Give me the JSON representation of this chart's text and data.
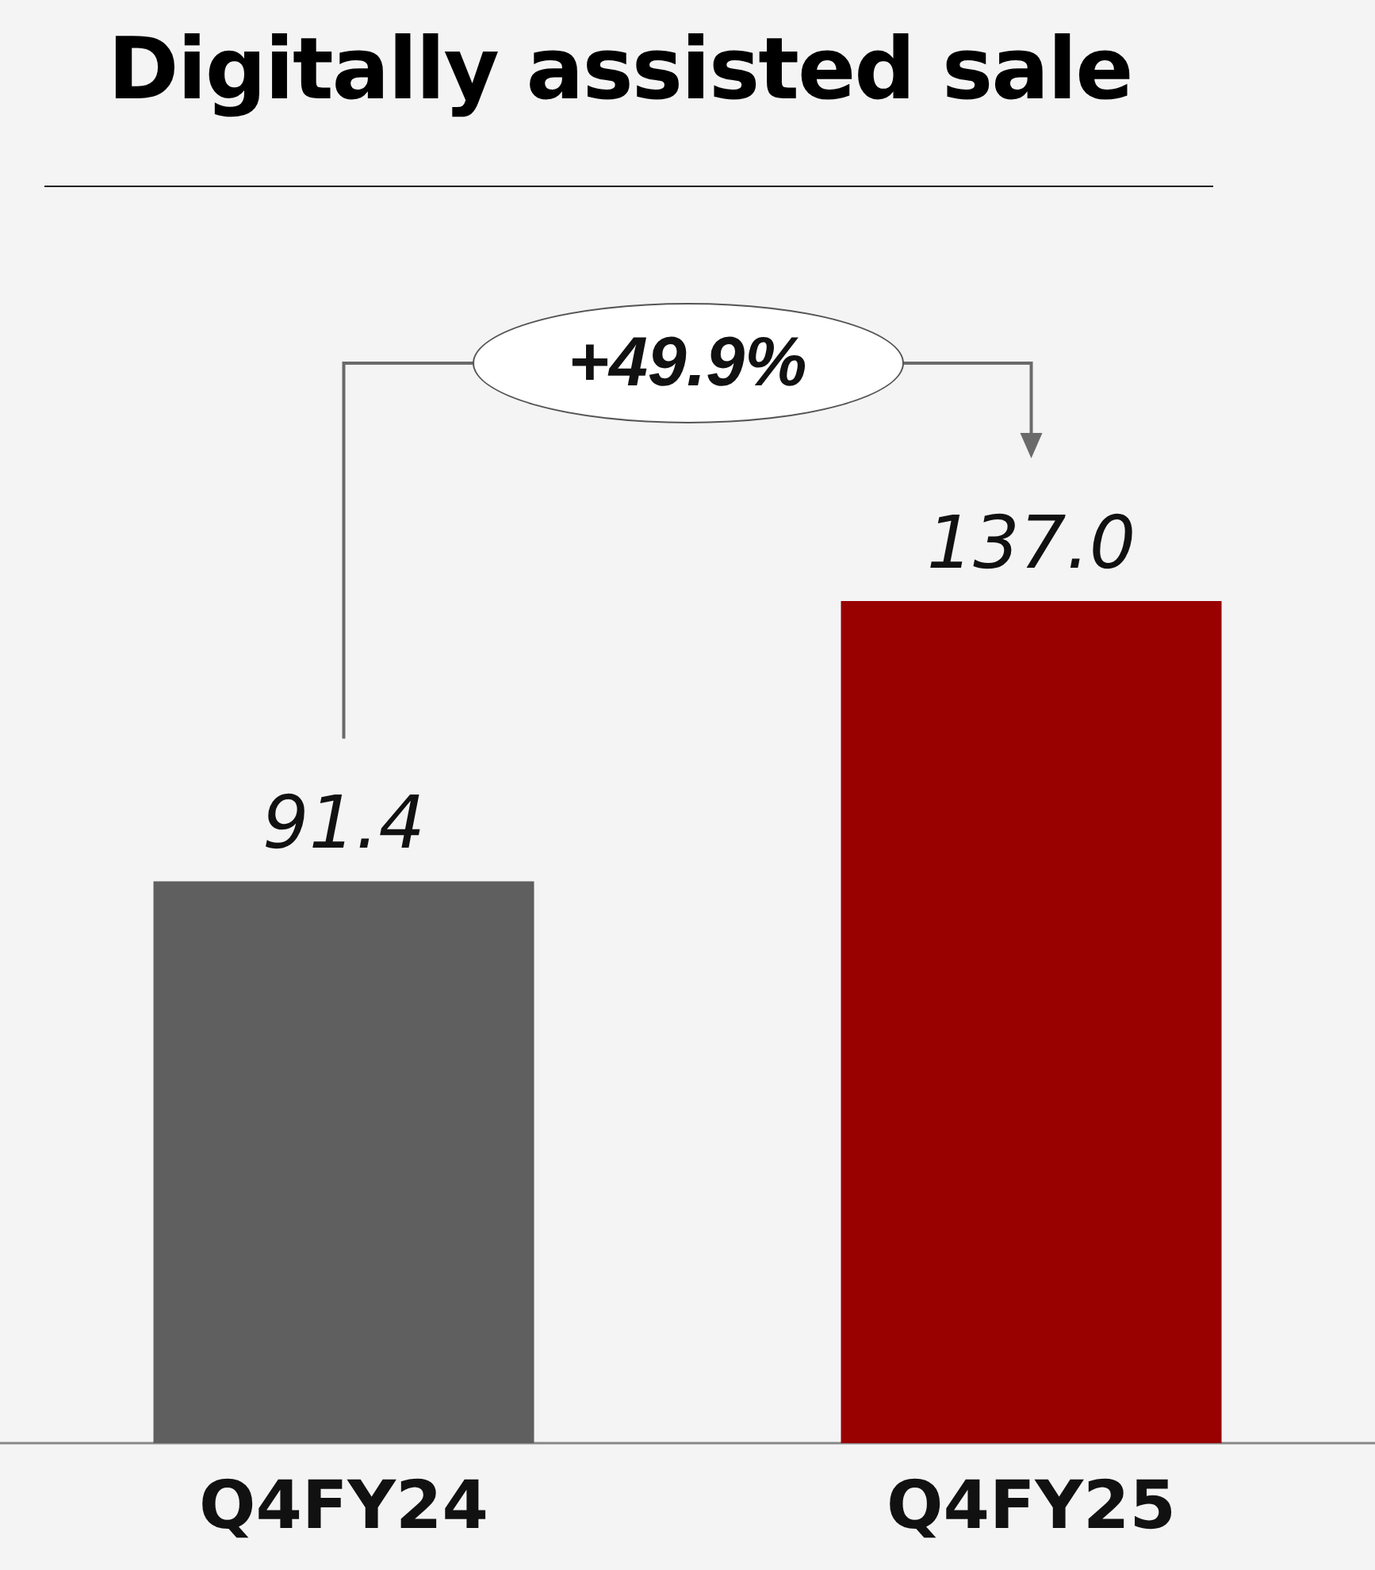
{
  "chart_data": {
    "type": "bar",
    "title": "Digitally assisted sale",
    "categories": [
      "Q4FY24",
      "Q4FY25"
    ],
    "values": [
      91.4,
      137.0
    ],
    "colors": [
      "#5f5f5f",
      "#990000"
    ],
    "value_labels": [
      "91.4",
      "137.0"
    ],
    "annotations": [
      "+49.9%"
    ]
  }
}
